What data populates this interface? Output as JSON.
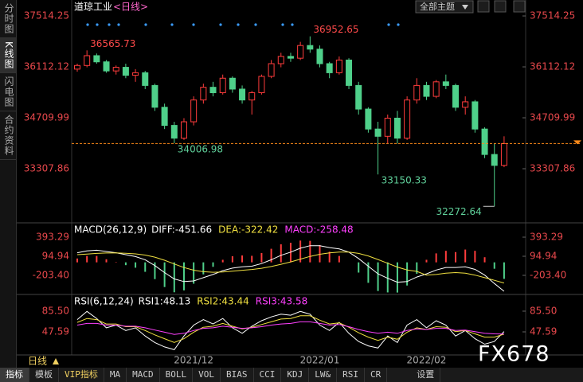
{
  "sidebar_tabs": [
    "分时图",
    "K线图",
    "闪电图",
    "合约资料"
  ],
  "theme_button": "全部主题",
  "period_label": "日线",
  "watermark": "FX678",
  "toolbar": [
    "指标",
    "模板",
    "VIP指标",
    "MA",
    "MACD",
    "BOLL",
    "VOL",
    "BIAS",
    "CCI",
    "KDJ",
    "LW&",
    "RSI",
    "CR",
    "设置"
  ],
  "chart_data": [
    {
      "type": "candlestick",
      "title": "道琼工业",
      "subtitle": "<日线>",
      "categories": [
        null,
        null,
        null,
        null,
        null,
        null,
        null,
        null,
        null,
        null,
        null,
        null,
        "2021/12",
        null,
        null,
        null,
        null,
        null,
        null,
        null,
        null,
        null,
        null,
        null,
        null,
        "2022/01",
        null,
        null,
        null,
        null,
        null,
        null,
        null,
        null,
        null,
        null,
        "2022/02",
        null,
        null,
        null,
        null,
        null,
        null,
        null,
        null
      ],
      "open": [
        36050,
        36150,
        36420,
        36250,
        36000,
        36100,
        35880,
        35950,
        35600,
        35000,
        34500,
        34150,
        34600,
        35200,
        35550,
        35400,
        35800,
        35500,
        35200,
        35400,
        35850,
        36200,
        36400,
        36350,
        36700,
        36600,
        36200,
        35950,
        36300,
        35600,
        34950,
        34400,
        34200,
        34700,
        34150,
        35200,
        35600,
        35300,
        35700,
        35600,
        35000,
        35150,
        34400,
        33700,
        33400
      ],
      "high": [
        36200,
        36565.73,
        36480,
        36300,
        36150,
        36200,
        36050,
        36000,
        35650,
        35100,
        34600,
        34700,
        35300,
        35650,
        35700,
        35900,
        35850,
        35600,
        35450,
        35900,
        36300,
        36500,
        36500,
        36800,
        36952.65,
        36700,
        36250,
        36400,
        36350,
        35700,
        35000,
        34600,
        34800,
        34900,
        35300,
        35800,
        35700,
        35750,
        35900,
        35650,
        35300,
        35200,
        34450,
        34000,
        34200
      ],
      "low": [
        35980,
        36100,
        36200,
        35950,
        35900,
        35800,
        35700,
        35500,
        34900,
        34400,
        34006.98,
        34100,
        34500,
        35100,
        35300,
        35350,
        35400,
        35100,
        34800,
        35350,
        35800,
        36100,
        36250,
        36300,
        36500,
        36100,
        35800,
        35900,
        35500,
        34800,
        34300,
        33150.33,
        34000,
        34000,
        34100,
        35100,
        35200,
        35250,
        35500,
        34900,
        34800,
        34300,
        33600,
        32272.64,
        33350
      ],
      "close": [
        36150,
        36420,
        36250,
        36000,
        36100,
        35880,
        35950,
        35600,
        35000,
        34500,
        34150,
        34600,
        35200,
        35550,
        35400,
        35800,
        35500,
        35200,
        35400,
        35850,
        36200,
        36400,
        36350,
        36700,
        36600,
        36200,
        35950,
        36300,
        35600,
        34950,
        34400,
        34200,
        34700,
        34150,
        35200,
        35600,
        35300,
        35700,
        35600,
        35000,
        35150,
        34400,
        33700,
        33400,
        34000
      ],
      "up_color": "#ff3c3c",
      "down_color": "#4fd08a",
      "last_line_color": "#ff8c1a",
      "ylim": [
        31862,
        37690
      ],
      "yticks": [
        37514.25,
        36112.12,
        34709.99,
        33307.86
      ],
      "tick_color": "#e8484c"
    },
    {
      "type": "bar_line",
      "title": "MACD(26,12,9)",
      "series": [
        {
          "label": "DIFF:-451.66",
          "color": "#ffffff",
          "kind": "line",
          "values": [
            150,
            180,
            190,
            170,
            150,
            120,
            90,
            40,
            -50,
            -160,
            -260,
            -300,
            -290,
            -240,
            -190,
            -130,
            -90,
            -70,
            -60,
            -20,
            40,
            110,
            160,
            220,
            260,
            260,
            230,
            210,
            160,
            60,
            -60,
            -180,
            -250,
            -310,
            -300,
            -230,
            -180,
            -120,
            -80,
            -80,
            -70,
            -110,
            -200,
            -330,
            -451.66
          ]
        },
        {
          "label": "DEA:-322.42",
          "color": "#f0e040",
          "kind": "line",
          "values": [
            120,
            130,
            140,
            146,
            147,
            142,
            132,
            114,
            81,
            33,
            -26,
            -81,
            -123,
            -146,
            -155,
            -150,
            -138,
            -124,
            -111,
            -93,
            -66,
            -31,
            7,
            50,
            92,
            126,
            147,
            160,
            160,
            140,
            100,
            44,
            -15,
            -74,
            -119,
            -141,
            -200,
            -190,
            -170,
            -160,
            -170,
            -200,
            -240,
            -280,
            -322.42
          ]
        },
        {
          "label": "MACD:-258.48",
          "color": "#ff40ff",
          "kind": "bar",
          "up_color": "#ff3c3c",
          "down_color": "#4fd08a",
          "values": [
            60,
            100,
            100,
            48,
            6,
            -44,
            -84,
            -148,
            -262,
            -386,
            -468,
            -438,
            -334,
            -188,
            -70,
            40,
            96,
            108,
            102,
            146,
            212,
            282,
            306,
            340,
            336,
            268,
            166,
            100,
            0,
            -160,
            -320,
            -448,
            -470,
            -472,
            -362,
            -178,
            40,
            140,
            180,
            160,
            200,
            180,
            80,
            -100,
            -258.48
          ]
        }
      ],
      "ylim": [
        -477,
        580
      ],
      "yticks": [
        393.29,
        94.94,
        {
          "value": -203.4,
          "label": "-203.40"
        }
      ],
      "tick_color": "#e8484c"
    },
    {
      "type": "line",
      "title": "RSI(6,12,24)",
      "series": [
        {
          "label": "RSI1:48.13",
          "color": "#ffffff",
          "values": [
            70,
            85,
            72,
            55,
            60,
            50,
            55,
            40,
            28,
            20,
            15,
            40,
            60,
            70,
            62,
            72,
            55,
            45,
            58,
            68,
            75,
            80,
            78,
            85,
            80,
            60,
            50,
            65,
            45,
            30,
            22,
            18,
            40,
            28,
            60,
            70,
            55,
            68,
            60,
            40,
            50,
            35,
            25,
            30,
            48.13
          ]
        },
        {
          "label": "RSI2:43.44",
          "color": "#f0e040",
          "values": [
            65,
            72,
            70,
            62,
            62,
            57,
            57,
            50,
            42,
            35,
            28,
            35,
            47,
            56,
            58,
            63,
            58,
            53,
            56,
            61,
            66,
            71,
            72,
            77,
            77,
            69,
            62,
            64,
            56,
            46,
            38,
            32,
            38,
            34,
            47,
            55,
            52,
            57,
            56,
            48,
            50,
            44,
            38,
            38,
            43.44
          ]
        },
        {
          "label": "RSI3:43.58",
          "color": "#ff40ff",
          "values": [
            60,
            63,
            63,
            60,
            60,
            58,
            58,
            55,
            51,
            47,
            43,
            45,
            50,
            54,
            55,
            58,
            56,
            54,
            55,
            57,
            60,
            62,
            63,
            66,
            66,
            63,
            60,
            61,
            57,
            52,
            48,
            45,
            47,
            45,
            50,
            53,
            52,
            54,
            54,
            50,
            51,
            48,
            45,
            44,
            43.58
          ]
        }
      ],
      "ylim": [
        6.8,
        111.7
      ],
      "yticks": [
        {
          "value": 85.5,
          "label": "85.50"
        },
        47.59
      ],
      "tick_color": "#e8484c"
    }
  ]
}
